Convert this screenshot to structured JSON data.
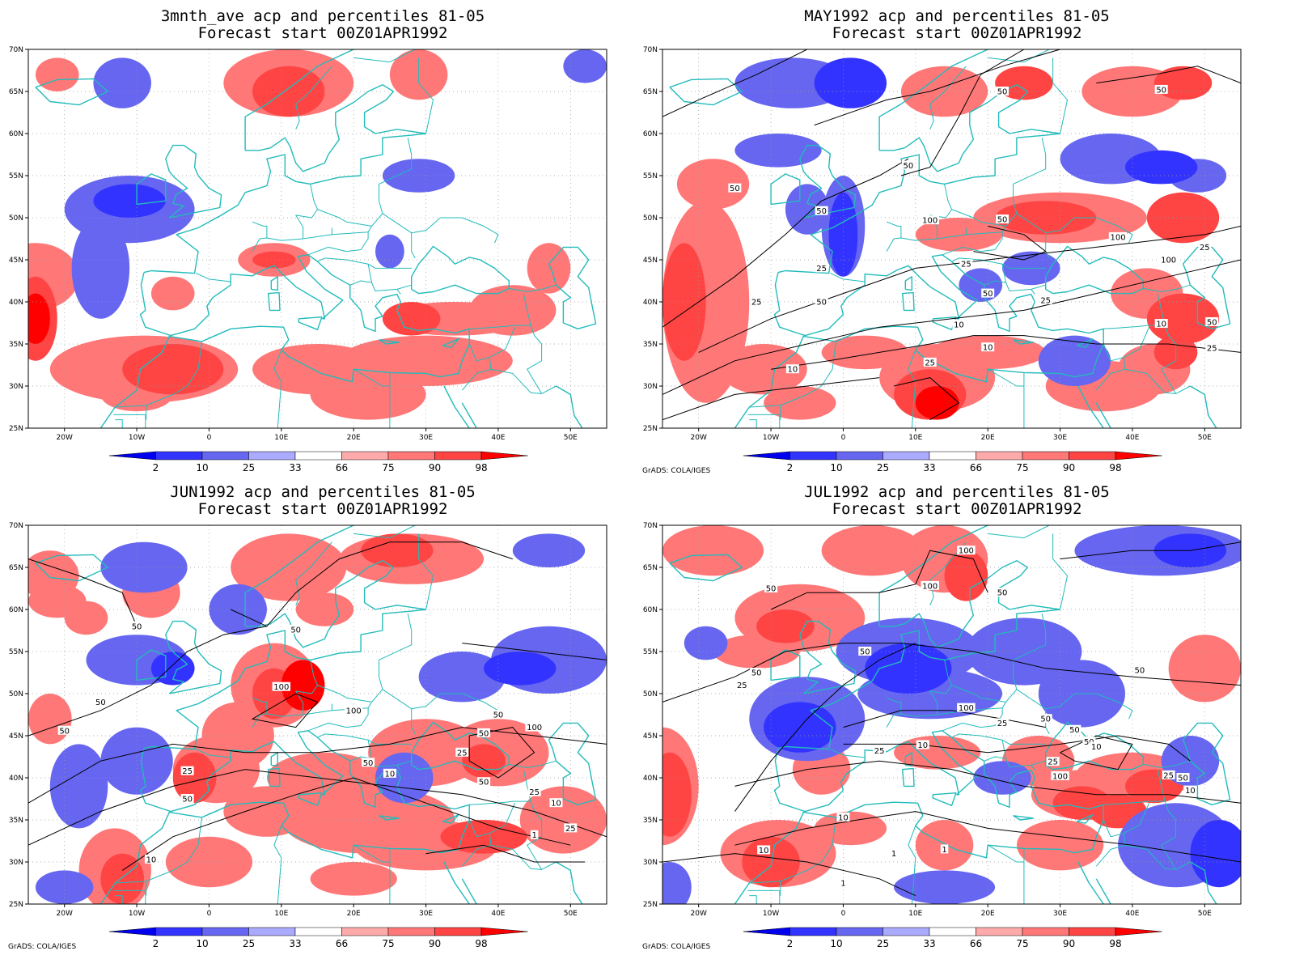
{
  "credit": "GrADS: COLA/IGES",
  "lat_labels": [
    "70N",
    "65N",
    "60N",
    "55N",
    "50N",
    "45N",
    "40N",
    "35N",
    "30N",
    "25N"
  ],
  "lon_labels": [
    "20W",
    "10W",
    "0",
    "10E",
    "20E",
    "30E",
    "40E",
    "50E"
  ],
  "colorbar": {
    "labels": [
      "2",
      "10",
      "25",
      "33",
      "66",
      "75",
      "90",
      "98"
    ],
    "colors": [
      "#0000ee",
      "#3333ff",
      "#6666f0",
      "#aaaaff",
      "#ffffff",
      "#ffaaaa",
      "#ff7777",
      "#ff4444",
      "#ff0000"
    ]
  },
  "colors": {
    "coast": "#22bbbb",
    "contour": "#000000",
    "grid": "#999999"
  },
  "panels": [
    {
      "title1": "3mnth_ave acp and percentiles 81-05",
      "title2": "Forecast start 00Z01APR1992",
      "show_credit": false,
      "contour_labels": []
    },
    {
      "title1": "MAY1992 acp and percentiles 81-05",
      "title2": "Forecast start 00Z01APR1992",
      "show_credit": true,
      "contour_labels": [
        "50",
        "50",
        "50",
        "50",
        "50",
        "100",
        "100",
        "50",
        "25",
        "25",
        "100",
        "25",
        "50",
        "25",
        "25",
        "50",
        "10",
        "10",
        "25",
        "10",
        "10",
        "50",
        "25"
      ]
    },
    {
      "title1": "JUN1992 acp and percentiles 81-05",
      "title2": "Forecast start 00Z01APR1992",
      "show_credit": true,
      "contour_labels": [
        "50",
        "50",
        "50",
        "50",
        "100",
        "100",
        "50",
        "50",
        "100",
        "25",
        "50",
        "25",
        "10",
        "50",
        "50",
        "25",
        "10",
        "25",
        "1",
        "10"
      ]
    },
    {
      "title1": "JUL1992 acp and percentiles 81-05",
      "title2": "Forecast start 00Z01APR1992",
      "show_credit": true,
      "contour_labels": [
        "100",
        "50",
        "50",
        "100",
        "50",
        "50",
        "50",
        "25",
        "50",
        "25",
        "100",
        "50",
        "25",
        "50",
        "10",
        "25",
        "50",
        "10",
        "100",
        "25",
        "10",
        "10",
        "10",
        "1",
        "1",
        "1"
      ]
    }
  ]
}
